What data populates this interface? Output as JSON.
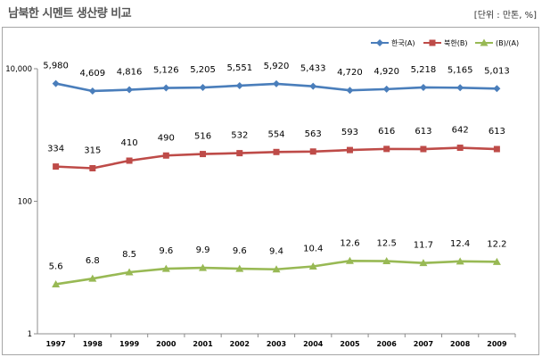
{
  "chart_data": {
    "type": "line",
    "title": "남북한 시멘트 생산량 비교",
    "unit_note": "[단위 : 만톤, %]",
    "x": [
      "1997",
      "1998",
      "1999",
      "2000",
      "2001",
      "2002",
      "2003",
      "2004",
      "2005",
      "2006",
      "2007",
      "2008",
      "2009"
    ],
    "y_scale": "log",
    "ylim": [
      1,
      10000
    ],
    "yticks": [
      "1",
      "100",
      "10,000"
    ],
    "legend_position": "top-right",
    "grid": false,
    "series": [
      {
        "name": "한국(A)",
        "color": "#4a7ebb",
        "marker": "diamond",
        "values": [
          5980,
          4609,
          4816,
          5126,
          5205,
          5551,
          5920,
          5433,
          4720,
          4920,
          5218,
          5165,
          5013
        ],
        "labels": [
          "5,980",
          "4,609",
          "4,816",
          "5,126",
          "5,205",
          "5,551",
          "5,920",
          "5,433",
          "4,720",
          "4,920",
          "5,218",
          "5,165",
          "5,013"
        ]
      },
      {
        "name": "북한(B)",
        "color": "#be4b48",
        "marker": "square",
        "values": [
          334,
          315,
          410,
          490,
          516,
          532,
          554,
          563,
          593,
          616,
          613,
          642,
          613
        ],
        "labels": [
          "334",
          "315",
          "410",
          "490",
          "516",
          "532",
          "554",
          "563",
          "593",
          "616",
          "613",
          "642",
          "613"
        ]
      },
      {
        "name": "(B)/(A)",
        "color": "#98b954",
        "marker": "triangle",
        "values": [
          5.6,
          6.8,
          8.5,
          9.6,
          9.9,
          9.6,
          9.4,
          10.4,
          12.6,
          12.5,
          11.7,
          12.4,
          12.2
        ],
        "labels": [
          "5.6",
          "6.8",
          "8.5",
          "9.6",
          "9.9",
          "9.6",
          "9.4",
          "10.4",
          "12.6",
          "12.5",
          "11.7",
          "12.4",
          "12.2"
        ]
      }
    ]
  }
}
